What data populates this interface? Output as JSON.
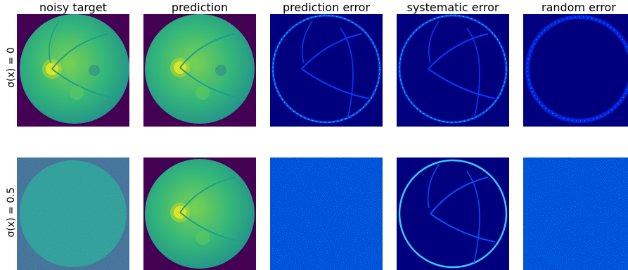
{
  "columns": [
    {
      "title": "noisy target"
    },
    {
      "title": "prediction"
    },
    {
      "title": "prediction error"
    },
    {
      "title": "systematic error"
    },
    {
      "title": "random error"
    }
  ],
  "rows": [
    {
      "label": "σ(x) = 0"
    },
    {
      "label": "σ(x) = 0.5"
    }
  ],
  "colors": {
    "viridis_dark": "#440154",
    "viridis_green": "#35b779",
    "viridis_yellow": "#fde725",
    "jet_dark_blue": "#00007f",
    "jet_blue": "#0000ff",
    "jet_cyan": "#00ffff",
    "noise_teal": "#31688e"
  }
}
